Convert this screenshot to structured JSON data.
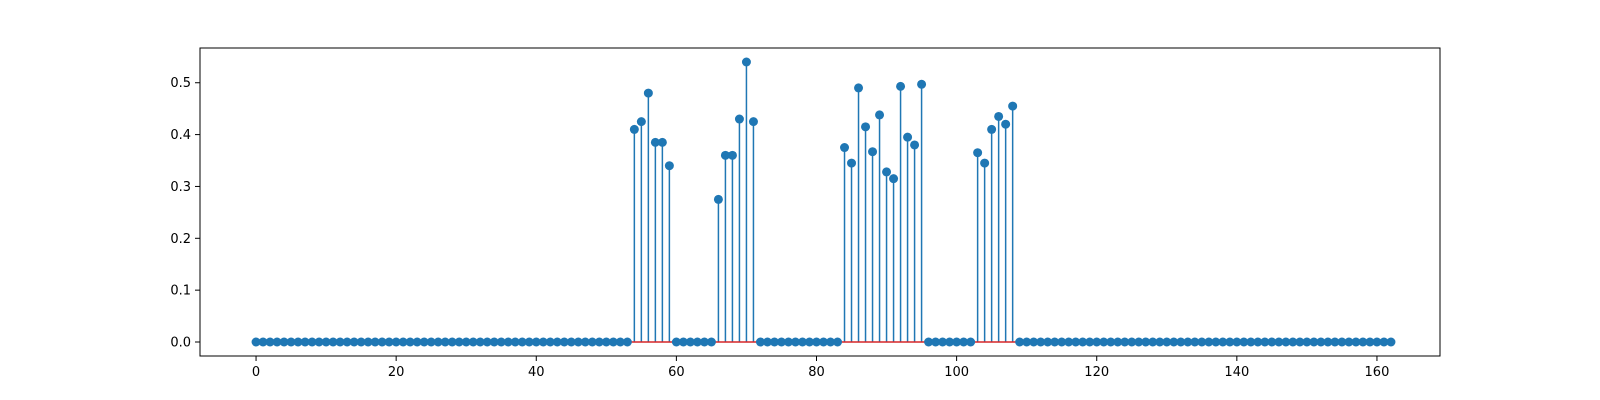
{
  "chart_data": {
    "type": "stem",
    "title": "",
    "xlabel": "",
    "ylabel": "",
    "xlim": [
      -8,
      169
    ],
    "ylim": [
      -0.027,
      0.567
    ],
    "x_ticks": [
      0,
      20,
      40,
      60,
      80,
      100,
      120,
      140,
      160
    ],
    "x_tick_labels": [
      "0",
      "20",
      "40",
      "60",
      "80",
      "100",
      "120",
      "140",
      "160"
    ],
    "y_ticks": [
      0.0,
      0.1,
      0.2,
      0.3,
      0.4,
      0.5
    ],
    "y_tick_labels": [
      "0.0",
      "0.1",
      "0.2",
      "0.3",
      "0.4",
      "0.5"
    ],
    "grid": false,
    "legend": null,
    "colors": {
      "stem": "#1f77b4",
      "marker": "#1f77b4",
      "baseline": "#d62728"
    },
    "x_start": 0,
    "values": [
      0,
      0,
      0,
      0,
      0,
      0,
      0,
      0,
      0,
      0,
      0,
      0,
      0,
      0,
      0,
      0,
      0,
      0,
      0,
      0,
      0,
      0,
      0,
      0,
      0,
      0,
      0,
      0,
      0,
      0,
      0,
      0,
      0,
      0,
      0,
      0,
      0,
      0,
      0,
      0,
      0,
      0,
      0,
      0,
      0,
      0,
      0,
      0,
      0,
      0,
      0,
      0,
      0,
      0,
      0.41,
      0.425,
      0.48,
      0.385,
      0.385,
      0.34,
      0,
      0,
      0,
      0,
      0,
      0,
      0.275,
      0.36,
      0.36,
      0.43,
      0.54,
      0.425,
      0,
      0,
      0,
      0,
      0,
      0,
      0,
      0,
      0,
      0,
      0,
      0,
      0.375,
      0.345,
      0.49,
      0.415,
      0.367,
      0.438,
      0.328,
      0.315,
      0.493,
      0.395,
      0.38,
      0.497,
      0,
      0,
      0,
      0,
      0,
      0,
      0,
      0.365,
      0.345,
      0.41,
      0.435,
      0.42,
      0.455,
      0,
      0,
      0,
      0,
      0,
      0,
      0,
      0,
      0,
      0,
      0,
      0,
      0,
      0,
      0,
      0,
      0,
      0,
      0,
      0,
      0,
      0,
      0,
      0,
      0,
      0,
      0,
      0,
      0,
      0,
      0,
      0,
      0,
      0,
      0,
      0,
      0,
      0,
      0,
      0,
      0,
      0,
      0,
      0,
      0,
      0,
      0,
      0,
      0,
      0,
      0,
      0,
      0,
      0
    ]
  }
}
